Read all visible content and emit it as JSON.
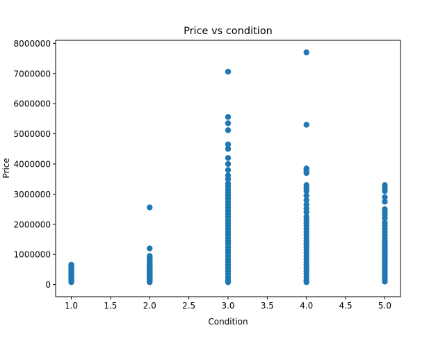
{
  "chart_data": {
    "type": "scatter",
    "title": "Price vs condition",
    "xlabel": "Condition",
    "ylabel": "Price",
    "xlim": [
      0.8,
      5.2
    ],
    "ylim": [
      -400000,
      8100000
    ],
    "xticks": [
      1.0,
      1.5,
      2.0,
      2.5,
      3.0,
      3.5,
      4.0,
      4.5,
      5.0
    ],
    "xtick_labels": [
      "1.0",
      "1.5",
      "2.0",
      "2.5",
      "3.0",
      "3.5",
      "4.0",
      "4.5",
      "5.0"
    ],
    "yticks": [
      0,
      1000000,
      2000000,
      3000000,
      4000000,
      5000000,
      6000000,
      7000000,
      8000000
    ],
    "ytick_labels": [
      "0",
      "1000000",
      "2000000",
      "3000000",
      "4000000",
      "5000000",
      "6000000",
      "7000000",
      "8000000"
    ],
    "grid": false,
    "marker_color": "#1f77b4",
    "series": [
      {
        "x": 1.0,
        "y": [
          80000,
          110000,
          140000,
          170000,
          200000,
          230000,
          260000,
          290000,
          320000,
          350000,
          380000,
          410000,
          440000,
          470000,
          500000,
          540000,
          580000,
          620000,
          660000
        ]
      },
      {
        "x": 2.0,
        "y": [
          80000,
          100000,
          120000,
          140000,
          160000,
          180000,
          200000,
          220000,
          240000,
          260000,
          280000,
          300000,
          320000,
          340000,
          360000,
          380000,
          400000,
          420000,
          440000,
          460000,
          480000,
          500000,
          520000,
          540000,
          560000,
          580000,
          600000,
          620000,
          650000,
          680000,
          720000,
          760000,
          800000,
          850000,
          900000,
          950000,
          1200000,
          2560000
        ]
      },
      {
        "x": 3.0,
        "y": [
          80000,
          150000,
          250000,
          350000,
          450000,
          550000,
          650000,
          750000,
          850000,
          950000,
          1050000,
          1150000,
          1250000,
          1350000,
          1450000,
          1550000,
          1650000,
          1750000,
          1850000,
          1950000,
          2050000,
          2150000,
          2250000,
          2350000,
          2450000,
          2550000,
          2650000,
          2750000,
          2850000,
          2950000,
          3050000,
          3150000,
          3250000,
          3350000,
          3500000,
          3620000,
          3800000,
          4000000,
          4200000,
          4500000,
          4650000,
          5120000,
          5350000,
          5560000,
          7060000
        ]
      },
      {
        "x": 4.0,
        "y": [
          80000,
          150000,
          250000,
          350000,
          450000,
          550000,
          650000,
          750000,
          850000,
          950000,
          1050000,
          1150000,
          1250000,
          1350000,
          1450000,
          1550000,
          1650000,
          1750000,
          1850000,
          1950000,
          2050000,
          2150000,
          2250000,
          2400000,
          2520000,
          2650000,
          2800000,
          2950000,
          3100000,
          3200000,
          3300000,
          3700000,
          3780000,
          3850000,
          5300000,
          7700000
        ]
      },
      {
        "x": 5.0,
        "y": [
          100000,
          170000,
          250000,
          330000,
          410000,
          490000,
          570000,
          650000,
          730000,
          810000,
          890000,
          970000,
          1050000,
          1130000,
          1210000,
          1290000,
          1370000,
          1450000,
          1550000,
          1650000,
          1750000,
          1850000,
          1950000,
          2050000,
          2200000,
          2300000,
          2400000,
          2500000,
          2750000,
          2900000,
          3100000,
          3200000,
          3300000
        ]
      }
    ]
  }
}
